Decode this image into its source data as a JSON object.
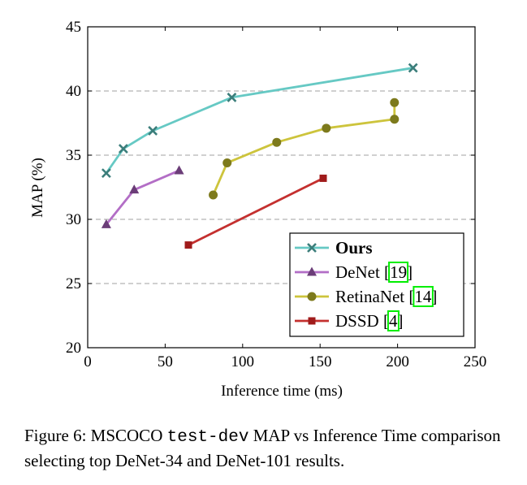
{
  "chart_data": {
    "type": "line",
    "title": "",
    "xlabel": "Inference time (ms)",
    "ylabel": "MAP (%)",
    "xlim": [
      0,
      250
    ],
    "ylim": [
      20,
      45
    ],
    "xticks": [
      0,
      50,
      100,
      150,
      200,
      250
    ],
    "yticks": [
      20,
      25,
      30,
      35,
      40,
      45
    ],
    "grid": "horizontal dashed",
    "legend_position": "bottom-right",
    "series": [
      {
        "name": "Ours",
        "ref": "",
        "color": "#66c9c4",
        "marker_color": "#3c7e7b",
        "marker": "x",
        "x": [
          12,
          23,
          42,
          93,
          210
        ],
        "y": [
          33.6,
          35.5,
          36.9,
          39.5,
          41.8
        ]
      },
      {
        "name": "DeNet [",
        "ref": "19",
        "color": "#b36ec6",
        "marker_color": "#6b3d78",
        "marker": "triangle",
        "x": [
          12,
          30,
          59
        ],
        "y": [
          29.6,
          32.3,
          33.8
        ]
      },
      {
        "name": "RetinaNet [",
        "ref": "14",
        "color": "#cdc43c",
        "marker_color": "#7d7a1c",
        "marker": "circle",
        "x": [
          81,
          90,
          122,
          154,
          198,
          198
        ],
        "y": [
          31.9,
          34.4,
          36.0,
          37.1,
          37.8,
          39.1
        ]
      },
      {
        "name": "DSSD [",
        "ref": "4",
        "color": "#c4302f",
        "marker_color": "#a01b1b",
        "marker": "square",
        "x": [
          65,
          152
        ],
        "y": [
          28.0,
          33.2
        ]
      }
    ],
    "legend_close": "]"
  },
  "caption": {
    "prefix": "Figure 6: MSCOCO ",
    "code": "test-dev",
    "suffix": " MAP vs Inference Time comparison selecting top DeNet-34 and DeNet-101 results."
  }
}
